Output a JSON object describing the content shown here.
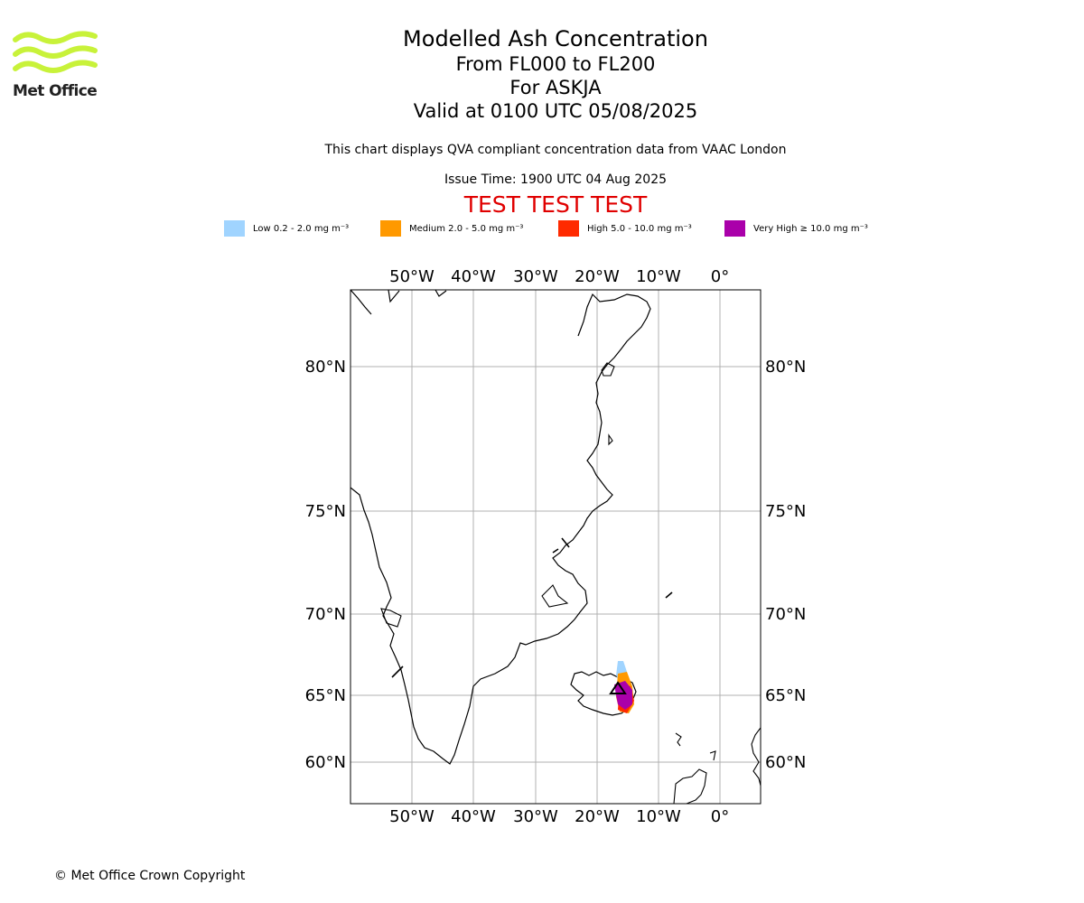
{
  "logo": {
    "text": "Met Office",
    "color": "#c8f23a"
  },
  "title": {
    "line1": "Modelled Ash Concentration",
    "line2": "From FL000 to FL200",
    "line3": "For ASKJA",
    "line4": "Valid at 0100 UTC 05/08/2025"
  },
  "description": "This chart displays QVA compliant concentration data from VAAC London",
  "issue_time": "Issue Time: 1900 UTC 04 Aug 2025",
  "test_banner": {
    "text": "TEST TEST TEST",
    "color": "#e00000"
  },
  "legend": [
    {
      "label": "Low 0.2 - 2.0 mg m⁻³",
      "color": "#a0d4ff"
    },
    {
      "label": "Medium 2.0 - 5.0 mg m⁻³",
      "color": "#ff9900"
    },
    {
      "label": "High 5.0 - 10.0 mg m⁻³",
      "color": "#ff2a00"
    },
    {
      "label": "Very High ≥ 10.0 mg m⁻³",
      "color": "#aa00aa"
    }
  ],
  "map": {
    "lon_labels": [
      "50°W",
      "40°W",
      "30°W",
      "20°W",
      "10°W",
      "0°"
    ],
    "lat_labels": [
      "80°N",
      "75°N",
      "70°N",
      "65°N",
      "60°N"
    ],
    "gridline_color": "#b0b0b0",
    "coastline_color": "#000000",
    "volcano": "ASKJA"
  },
  "copyright": "© Met Office Crown Copyright"
}
